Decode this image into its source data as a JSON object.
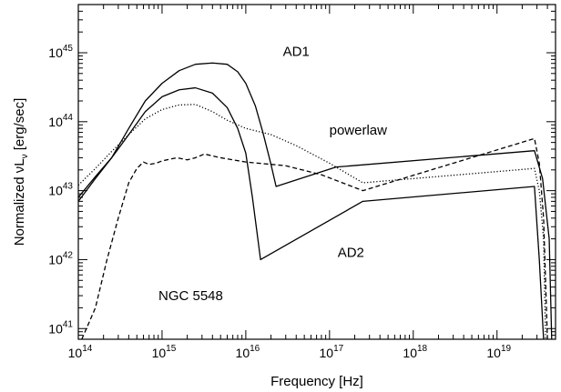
{
  "chart_data": {
    "type": "line",
    "title": "",
    "xlabel": "Frequency [Hz]",
    "ylabel": "Normalized νLν [erg/sec]",
    "x_scale": "log",
    "y_scale": "log",
    "xlim": [
      100000000000000.0,
      5e+19
    ],
    "ylim": [
      7e+40,
      5e+45
    ],
    "grid": false,
    "x_tick_labels": [
      {
        "value": 100000000000000.0,
        "base": "10",
        "exp": "14"
      },
      {
        "value": 1000000000000000.0,
        "base": "10",
        "exp": "15"
      },
      {
        "value": 1e+16,
        "base": "10",
        "exp": "16"
      },
      {
        "value": 1e+17,
        "base": "10",
        "exp": "17"
      },
      {
        "value": 1e+18,
        "base": "10",
        "exp": "18"
      },
      {
        "value": 1e+19,
        "base": "10",
        "exp": "19"
      }
    ],
    "y_tick_labels": [
      {
        "value": 1e+41,
        "base": "10",
        "exp": "41"
      },
      {
        "value": 1e+42,
        "base": "10",
        "exp": "42"
      },
      {
        "value": 1e+43,
        "base": "10",
        "exp": "43"
      },
      {
        "value": 1e+44,
        "base": "10",
        "exp": "44"
      },
      {
        "value": 1e+45,
        "base": "10",
        "exp": "45"
      }
    ],
    "series": [
      {
        "name": "AD1",
        "style": "solid",
        "points": [
          [
            100000000000000.0,
            8e+42
          ],
          [
            160000000000000.0,
            1.6e+43
          ],
          [
            250000000000000.0,
            3e+43
          ],
          [
            400000000000000.0,
            8e+43
          ],
          [
            630000000000000.0,
            2e+44
          ],
          [
            1000000000000000.0,
            3.6e+44
          ],
          [
            1600000000000000.0,
            5.5e+44
          ],
          [
            2500000000000000.0,
            6.8e+44
          ],
          [
            4000000000000000.0,
            7.1e+44
          ],
          [
            6000000000000000.0,
            6.8e+44
          ],
          [
            8000000000000000.0,
            5.3e+44
          ],
          [
            1e+16,
            3.6e+44
          ],
          [
            1.3e+16,
            1.7e+44
          ],
          [
            1.6e+16,
            7e+43
          ],
          [
            2e+16,
            2.4e+43
          ],
          [
            2.3e+16,
            1.15e+43
          ],
          [
            1.2e+17,
            2.2e+43
          ],
          [
            2.8e+19,
            3.8e+43
          ],
          [
            3.5e+19,
            1.5e+43
          ],
          [
            4.2e+19,
            2e+42
          ],
          [
            4.5e+19,
            7e+40
          ]
        ]
      },
      {
        "name": "AD2",
        "style": "solid",
        "points": [
          [
            100000000000000.0,
            7e+42
          ],
          [
            160000000000000.0,
            1.5e+43
          ],
          [
            250000000000000.0,
            3e+43
          ],
          [
            400000000000000.0,
            6.5e+43
          ],
          [
            630000000000000.0,
            1.4e+44
          ],
          [
            1000000000000000.0,
            2.3e+44
          ],
          [
            1600000000000000.0,
            2.9e+44
          ],
          [
            2500000000000000.0,
            3.1e+44
          ],
          [
            4000000000000000.0,
            2.6e+44
          ],
          [
            6000000000000000.0,
            1.6e+44
          ],
          [
            8000000000000000.0,
            8e+43
          ],
          [
            1e+16,
            3.5e+43
          ],
          [
            1.2e+16,
            8e+42
          ],
          [
            1.5e+16,
            1e+42
          ],
          [
            2.5e+17,
            7e+42
          ],
          [
            2.8e+19,
            1.15e+43
          ],
          [
            3.2e+19,
            1e+42
          ],
          [
            3.6e+19,
            7e+40
          ]
        ]
      },
      {
        "name": "powerlaw",
        "style": "dotted",
        "points": [
          [
            100000000000000.0,
            1.2e+43
          ],
          [
            160000000000000.0,
            2.1e+43
          ],
          [
            250000000000000.0,
            3.7e+43
          ],
          [
            400000000000000.0,
            6.5e+43
          ],
          [
            630000000000000.0,
            1.1e+44
          ],
          [
            1000000000000000.0,
            1.5e+44
          ],
          [
            1600000000000000.0,
            1.75e+44
          ],
          [
            2500000000000000.0,
            1.78e+44
          ],
          [
            4000000000000000.0,
            1.4e+44
          ],
          [
            6000000000000000.0,
            1.05e+44
          ],
          [
            1e+16,
            8e+43
          ],
          [
            2e+16,
            6.5e+43
          ],
          [
            4e+16,
            4.5e+43
          ],
          [
            1e+17,
            2.5e+43
          ],
          [
            2.5e+17,
            1.3e+43
          ],
          [
            2.8e+19,
            2.1e+43
          ],
          [
            3.2e+19,
            1e+43
          ],
          [
            3.6e+19,
            2e+42
          ],
          [
            3.8e+19,
            7e+40
          ]
        ]
      },
      {
        "name": "NGC 5548",
        "style": "dashed",
        "points": [
          [
            110000000000000.0,
            7e+40
          ],
          [
            160000000000000.0,
            2e+41
          ],
          [
            220000000000000.0,
            1e+42
          ],
          [
            300000000000000.0,
            4e+42
          ],
          [
            400000000000000.0,
            1.3e+43
          ],
          [
            500000000000000.0,
            2.1e+43
          ],
          [
            600000000000000.0,
            2.6e+43
          ],
          [
            700000000000000.0,
            2.4e+43
          ],
          [
            850000000000000.0,
            2.5e+43
          ],
          [
            1000000000000000.0,
            2.7e+43
          ],
          [
            1500000000000000.0,
            3e+43
          ],
          [
            2000000000000000.0,
            2.8e+43
          ],
          [
            2500000000000000.0,
            3e+43
          ],
          [
            3200000000000000.0,
            3.4e+43
          ],
          [
            5000000000000000.0,
            3e+43
          ],
          [
            1e+16,
            2.6e+43
          ],
          [
            3e+16,
            2.3e+43
          ],
          [
            8e+16,
            1.7e+43
          ],
          [
            2.5e+17,
            1e+43
          ],
          [
            2.8e+19,
            5.7e+43
          ],
          [
            3.2e+19,
            2.5e+43
          ],
          [
            3.6e+19,
            4e+42
          ],
          [
            4e+19,
            7e+40
          ]
        ]
      }
    ],
    "annotations": [
      {
        "text": "AD1",
        "x": 4e+16,
        "y": 9e+44
      },
      {
        "text": "powerlaw",
        "x": 2.2e+17,
        "y": 6.5e+43
      },
      {
        "text": "AD2",
        "x": 1.8e+17,
        "y": 1.1e+42
      },
      {
        "text": "NGC 5548",
        "x": 2200000000000000.0,
        "y": 2.6e+41
      }
    ]
  }
}
